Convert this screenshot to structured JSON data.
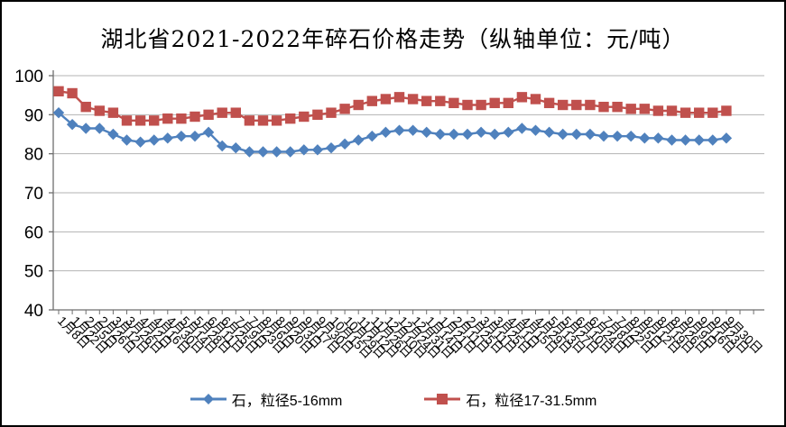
{
  "chart_data": {
    "type": "line",
    "title": "湖北省2021-2022年碎石价格走势（纵轴单位：元/吨）",
    "y_unit": "元/吨",
    "ylim": [
      40,
      100
    ],
    "yticks": [
      100,
      90,
      80,
      70,
      60,
      50,
      40
    ],
    "grid": "horizontal",
    "legend_position": "bottom-center",
    "axis_color": "#6e6e6e",
    "gridline_color": "#b3b3b3",
    "categories": [
      "1月8日",
      "1月22日",
      "2月5日",
      "2月26日",
      "3月12日",
      "3月26日",
      "4月2日",
      "4月16日",
      "4月30日",
      "5月14日",
      "5月28日",
      "6月11日",
      "6月25日",
      "7月9日",
      "7月23日",
      "8月6日",
      "8月20日",
      "9月3日",
      "9月17日",
      "9月30日",
      "10月15日",
      "10月29日",
      "11月12日",
      "11月26日",
      "12月10日",
      "12月24日",
      "12月31日",
      "1月14日",
      "1月21日",
      "2月11日",
      "2月25日",
      "3月11日",
      "3月25日",
      "4月1日",
      "4月15日",
      "4月29日",
      "5月13日",
      "5月27日",
      "6月10日",
      "6月24日",
      "7月8日",
      "7月22日",
      "8月5日",
      "8月12日",
      "8月19日",
      "8月26日",
      "9月9日",
      "9月16日",
      "9月23日",
      "9月30日"
    ],
    "series": [
      {
        "name": "石，粒径5-16mm",
        "marker": "diamond",
        "color": "#4f81bd",
        "values": [
          90.5,
          87.5,
          86.5,
          86.5,
          85,
          83.5,
          83,
          83.5,
          84,
          84.5,
          84.5,
          85.5,
          82,
          81.5,
          80.5,
          80.5,
          80.5,
          80.5,
          81,
          81,
          81.5,
          82.5,
          83.5,
          84.5,
          85.5,
          86,
          86,
          85.5,
          85,
          85,
          85,
          85.5,
          85,
          85.5,
          86.5,
          86,
          85.5,
          85,
          85,
          85,
          84.5,
          84.5,
          84.5,
          84,
          84,
          83.5,
          83.5,
          83.5,
          83.5,
          84
        ]
      },
      {
        "name": "石，粒径17-31.5mm",
        "marker": "square",
        "color": "#c0504d",
        "values": [
          96,
          95.5,
          92,
          91,
          90.5,
          88.5,
          88.5,
          88.5,
          89,
          89,
          89.5,
          90,
          90.5,
          90.5,
          88.5,
          88.5,
          88.5,
          89,
          89.5,
          90,
          90.5,
          91.5,
          92.5,
          93.5,
          94,
          94.5,
          94,
          93.5,
          93.5,
          93,
          92.5,
          92.5,
          93,
          93,
          94.5,
          94,
          93,
          92.5,
          92.5,
          92.5,
          92,
          92,
          91.5,
          91.5,
          91,
          91,
          90.5,
          90.5,
          90.5,
          91
        ]
      }
    ]
  }
}
